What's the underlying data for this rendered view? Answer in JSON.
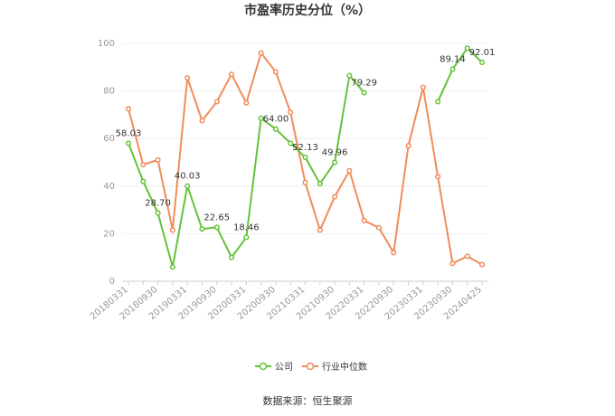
{
  "chart_data": {
    "type": "line",
    "title": "市盈率历史分位（%）",
    "ylim": [
      0,
      100
    ],
    "yticks": [
      0,
      20,
      40,
      60,
      80,
      100
    ],
    "grid": true,
    "legend_position": "bottom-center",
    "x": [
      "20180331",
      "20180630",
      "20180930",
      "20181231",
      "20190331",
      "20190630",
      "20190930",
      "20191231",
      "20200331",
      "20200630",
      "20200930",
      "20201231",
      "20210331",
      "20210630",
      "20210930",
      "20211231",
      "20220331",
      "20220630",
      "20220930",
      "20221231",
      "20230331",
      "20230630",
      "20230930",
      "20231231",
      "20240425"
    ],
    "x_tick_labels": [
      "20180331",
      "20180930",
      "20190331",
      "20190930",
      "20200331",
      "20200930",
      "20210331",
      "20210930",
      "20220331",
      "20220930",
      "20230331",
      "20230930",
      "20240425"
    ],
    "series": [
      {
        "name": "公司",
        "color": "#66c23a",
        "values": [
          58.03,
          42,
          28.7,
          6,
          40.03,
          22,
          22.65,
          10,
          18.46,
          68.5,
          64.0,
          58,
          52.13,
          41,
          49.96,
          86.5,
          79.29,
          null,
          null,
          null,
          null,
          75.5,
          89.14,
          98,
          92.01
        ],
        "labels": {
          "0": "58.03",
          "2": "28.70",
          "4": "40.03",
          "6": "22.65",
          "8": "18.46",
          "10": "64.00",
          "12": "52.13",
          "14": "49.96",
          "16": "79.29",
          "22": "89.14",
          "24": "92.01"
        }
      },
      {
        "name": "行业中位数",
        "color": "#f08c5a",
        "values": [
          72.5,
          49,
          51,
          21.5,
          85.5,
          67.5,
          75.5,
          87,
          75,
          96,
          88,
          71,
          41.5,
          21.5,
          35.5,
          46.5,
          25.5,
          22.5,
          12,
          57,
          81.5,
          44,
          7.5,
          10.5,
          7
        ]
      }
    ]
  },
  "source_text": "数据来源：恒生聚源"
}
